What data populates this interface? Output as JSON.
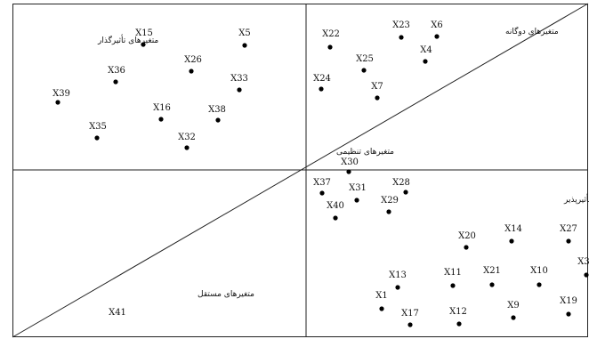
{
  "quadrants": {
    "influential": "متغیرهای تأثیرگذار",
    "dual": "متغیرهای دوگانه",
    "regulatory": "متغیرهای تنظیمی",
    "dependent": "متغیرهای تأثیرپذیر",
    "independent": "متغیرهای مستقل"
  },
  "variables": [
    {
      "label": "X15"
    },
    {
      "label": "X5"
    },
    {
      "label": "X26"
    },
    {
      "label": "X36"
    },
    {
      "label": "X33"
    },
    {
      "label": "X39"
    },
    {
      "label": "X16"
    },
    {
      "label": "X38"
    },
    {
      "label": "X35"
    },
    {
      "label": "X32"
    },
    {
      "label": "X22"
    },
    {
      "label": "X23"
    },
    {
      "label": "X6"
    },
    {
      "label": "X4"
    },
    {
      "label": "X25"
    },
    {
      "label": "X24"
    },
    {
      "label": "X7"
    },
    {
      "label": "X30"
    },
    {
      "label": "X37"
    },
    {
      "label": "X28"
    },
    {
      "label": "X31"
    },
    {
      "label": "X29"
    },
    {
      "label": "X40"
    },
    {
      "label": "X20"
    },
    {
      "label": "X14"
    },
    {
      "label": "X27"
    },
    {
      "label": "X3"
    },
    {
      "label": "X11"
    },
    {
      "label": "X21"
    },
    {
      "label": "X10"
    },
    {
      "label": "X13"
    },
    {
      "label": "X1"
    },
    {
      "label": "X9"
    },
    {
      "label": "X19"
    },
    {
      "label": "X17"
    },
    {
      "label": "X12"
    },
    {
      "label": "X41"
    }
  ]
}
